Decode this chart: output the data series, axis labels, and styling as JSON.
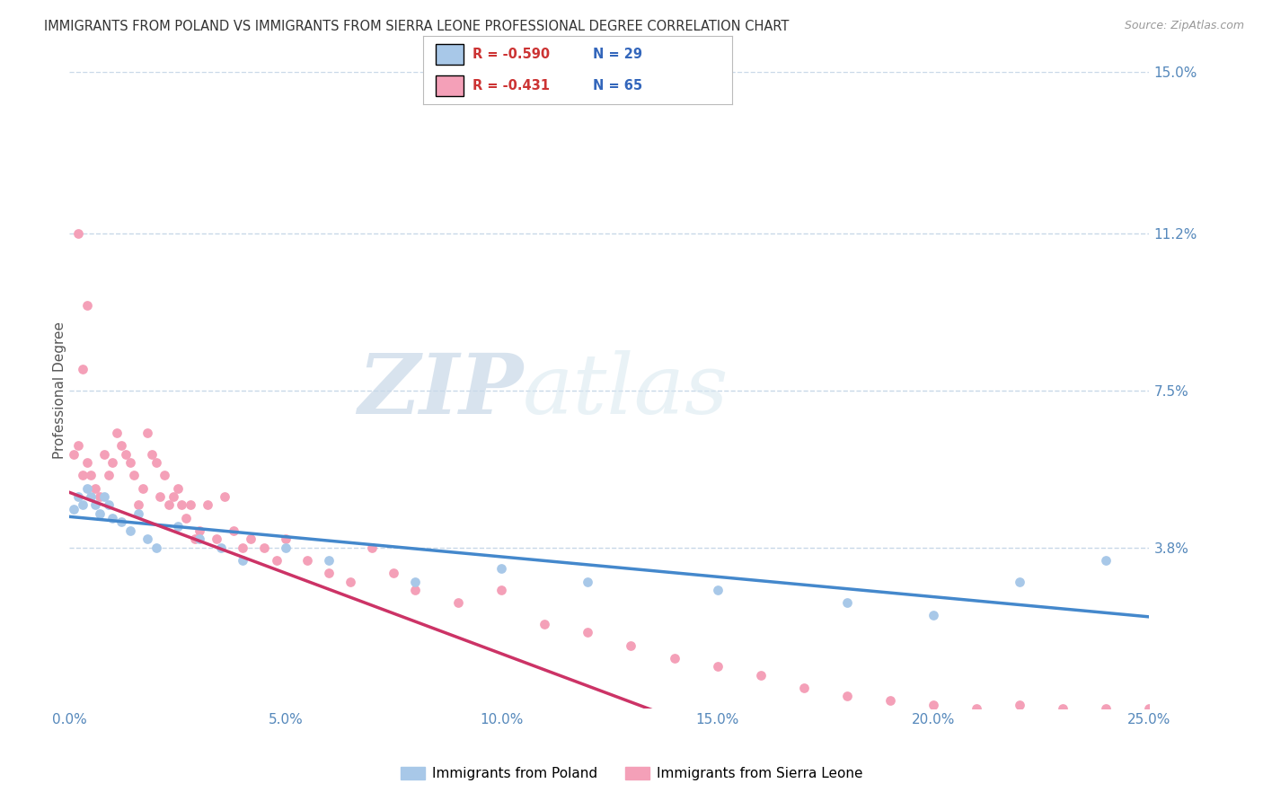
{
  "title": "IMMIGRANTS FROM POLAND VS IMMIGRANTS FROM SIERRA LEONE PROFESSIONAL DEGREE CORRELATION CHART",
  "source": "Source: ZipAtlas.com",
  "ylabel": "Professional Degree",
  "xlim": [
    0.0,
    0.25
  ],
  "ylim": [
    0.0,
    0.15
  ],
  "xtick_vals": [
    0.0,
    0.05,
    0.1,
    0.15,
    0.2,
    0.25
  ],
  "xticklabels": [
    "0.0%",
    "5.0%",
    "10.0%",
    "15.0%",
    "20.0%",
    "25.0%"
  ],
  "yticks_right": [
    0.038,
    0.075,
    0.112,
    0.15
  ],
  "yticklabels_right": [
    "3.8%",
    "7.5%",
    "11.2%",
    "15.0%"
  ],
  "poland_color": "#a8c8e8",
  "poland_line_color": "#4488cc",
  "sierra_leone_color": "#f4a0b8",
  "sierra_leone_line_color": "#cc3366",
  "poland_R": -0.59,
  "poland_N": 29,
  "sierra_leone_R": -0.431,
  "sierra_leone_N": 65,
  "legend_label_poland": "Immigrants from Poland",
  "legend_label_sierra_leone": "Immigrants from Sierra Leone",
  "axis_label_color": "#5588bb",
  "watermark_zip": "ZIP",
  "watermark_atlas": "atlas",
  "background_color": "#ffffff",
  "grid_color": "#c8d8e8",
  "scatter_size": 60,
  "poland_x": [
    0.001,
    0.002,
    0.003,
    0.004,
    0.005,
    0.006,
    0.007,
    0.008,
    0.009,
    0.01,
    0.012,
    0.014,
    0.016,
    0.018,
    0.02,
    0.025,
    0.03,
    0.035,
    0.04,
    0.05,
    0.06,
    0.08,
    0.1,
    0.12,
    0.15,
    0.18,
    0.2,
    0.22,
    0.24
  ],
  "poland_y": [
    0.047,
    0.05,
    0.048,
    0.052,
    0.05,
    0.048,
    0.046,
    0.05,
    0.048,
    0.045,
    0.044,
    0.042,
    0.046,
    0.04,
    0.038,
    0.043,
    0.04,
    0.038,
    0.035,
    0.038,
    0.035,
    0.03,
    0.033,
    0.03,
    0.028,
    0.025,
    0.022,
    0.03,
    0.035
  ],
  "sierra_x": [
    0.001,
    0.002,
    0.003,
    0.004,
    0.005,
    0.006,
    0.007,
    0.008,
    0.009,
    0.01,
    0.011,
    0.012,
    0.013,
    0.014,
    0.015,
    0.016,
    0.017,
    0.018,
    0.019,
    0.02,
    0.021,
    0.022,
    0.023,
    0.024,
    0.025,
    0.026,
    0.027,
    0.028,
    0.029,
    0.03,
    0.032,
    0.034,
    0.036,
    0.038,
    0.04,
    0.042,
    0.045,
    0.048,
    0.05,
    0.055,
    0.06,
    0.065,
    0.07,
    0.075,
    0.08,
    0.09,
    0.1,
    0.11,
    0.12,
    0.13,
    0.14,
    0.15,
    0.16,
    0.17,
    0.18,
    0.19,
    0.2,
    0.21,
    0.22,
    0.23,
    0.24,
    0.25,
    0.003,
    0.004,
    0.002
  ],
  "sierra_y": [
    0.06,
    0.062,
    0.055,
    0.058,
    0.055,
    0.052,
    0.05,
    0.06,
    0.055,
    0.058,
    0.065,
    0.062,
    0.06,
    0.058,
    0.055,
    0.048,
    0.052,
    0.065,
    0.06,
    0.058,
    0.05,
    0.055,
    0.048,
    0.05,
    0.052,
    0.048,
    0.045,
    0.048,
    0.04,
    0.042,
    0.048,
    0.04,
    0.05,
    0.042,
    0.038,
    0.04,
    0.038,
    0.035,
    0.04,
    0.035,
    0.032,
    0.03,
    0.038,
    0.032,
    0.028,
    0.025,
    0.028,
    0.02,
    0.018,
    0.015,
    0.012,
    0.01,
    0.008,
    0.005,
    0.003,
    0.002,
    0.001,
    0.0,
    0.001,
    0.0,
    0.0,
    0.0,
    0.08,
    0.095,
    0.112
  ]
}
